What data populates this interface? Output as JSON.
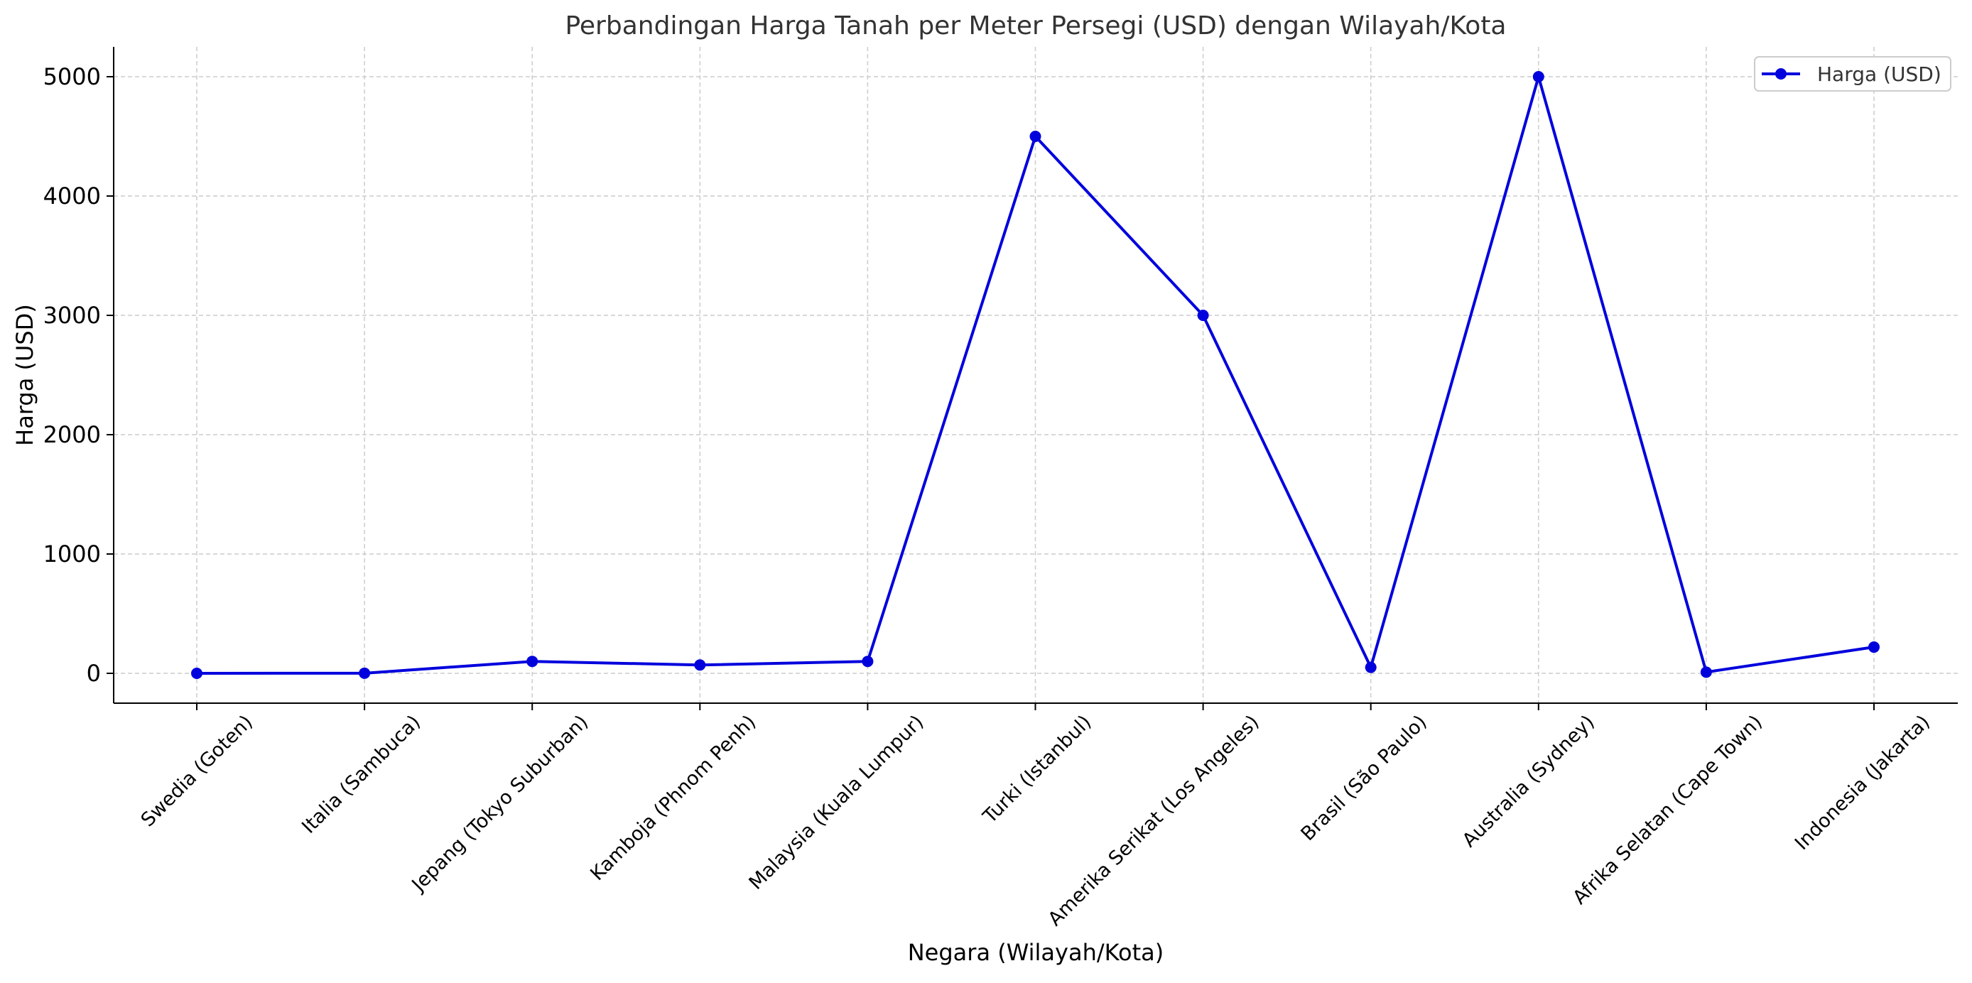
{
  "chart_data": {
    "type": "line",
    "title": "Perbandingan Harga Tanah per Meter Persegi (USD) dengan Wilayah/Kota",
    "xlabel": "Negara (Wilayah/Kota)",
    "ylabel": "Harga (USD)",
    "categories": [
      "Swedia (Goten)",
      "Italia (Sambuca)",
      "Jepang (Tokyo Suburban)",
      "Kamboja (Phnom Penh)",
      "Malaysia (Kuala Lumpur)",
      "Turki (Istanbul)",
      "Amerika Serikat (Los Angeles)",
      "Brasil (São Paulo)",
      "Australia (Sydney)",
      "Afrika Selatan (Cape Town)",
      "Indonesia (Jakarta)"
    ],
    "series": [
      {
        "name": "Harga (USD)",
        "values": [
          0,
          1,
          100,
          70,
          100,
          4500,
          3000,
          50,
          5000,
          10,
          220
        ]
      }
    ],
    "yticks": [
      0,
      1000,
      2000,
      3000,
      4000,
      5000
    ],
    "ylim": [
      -250,
      5250
    ],
    "grid": true,
    "legend_position": "top-right",
    "line_color": "#0000dd",
    "grid_color": "#cccccc"
  }
}
